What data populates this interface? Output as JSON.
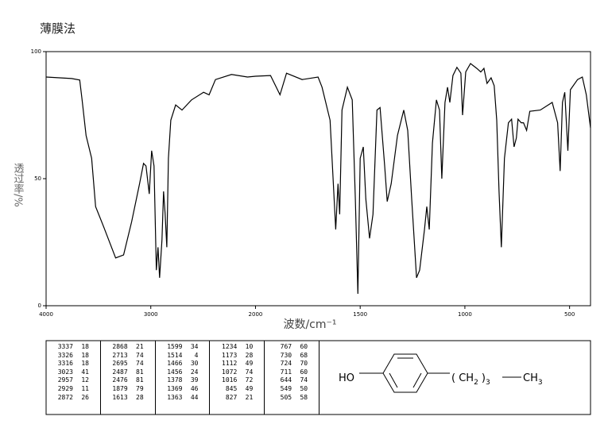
{
  "chart_data": {
    "type": "line",
    "title": "薄膜法",
    "x_label": "波数/cm⁻¹",
    "y_label": "透过率/%",
    "xlim": [
      4000,
      400
    ],
    "ylim": [
      0,
      100
    ],
    "xticks": [
      4000,
      3000,
      2000,
      1500,
      1000,
      500
    ],
    "yticks": [
      0,
      50,
      100
    ],
    "series": [
      {
        "color": "#000000",
        "x": [
          4000,
          3756,
          3679,
          3656,
          3618,
          3565,
          3527,
          3450,
          3336,
          3260,
          3183,
          3107,
          3069,
          3046,
          3015,
          2992,
          2969,
          2947,
          2931,
          2916,
          2893,
          2878,
          2863,
          2847,
          2832,
          2809,
          2763,
          2702,
          2611,
          2496,
          2443,
          2382,
          2229,
          2076,
          2000,
          1928,
          1883,
          1852,
          1777,
          1701,
          1682,
          1644,
          1617,
          1606,
          1598,
          1587,
          1561,
          1538,
          1523,
          1511,
          1500,
          1485,
          1473,
          1455,
          1439,
          1420,
          1405,
          1383,
          1371,
          1352,
          1322,
          1292,
          1273,
          1254,
          1231,
          1216,
          1193,
          1182,
          1170,
          1155,
          1136,
          1121,
          1110,
          1095,
          1083,
          1072,
          1057,
          1038,
          1019,
          1011,
          996,
          973,
          943,
          924,
          909,
          894,
          875,
          860,
          848,
          837,
          826,
          811,
          792,
          777,
          765,
          754,
          746,
          731,
          720,
          705,
          690,
          640,
          583,
          557,
          545,
          534,
          523,
          508,
          496,
          462,
          439,
          420,
          400
        ],
        "values": [
          90,
          89.4,
          88.8,
          81,
          67,
          58,
          39,
          31,
          18.8,
          20,
          33,
          48,
          56,
          55,
          44,
          61,
          55,
          14,
          23,
          11,
          26,
          45,
          36,
          23,
          58,
          73,
          79,
          77,
          81,
          84,
          83,
          89,
          91,
          90,
          90.3,
          90.6,
          83,
          91.5,
          89,
          90,
          86,
          73,
          30,
          48,
          36,
          77,
          86,
          81,
          42,
          4.7,
          58,
          62.5,
          42,
          26.5,
          36,
          77,
          78,
          55,
          41,
          48,
          67,
          77,
          69,
          42,
          11,
          14,
          30,
          39,
          30,
          64,
          81,
          77,
          50,
          80,
          86,
          80,
          90.6,
          93.8,
          91.5,
          75,
          92,
          95.3,
          93.4,
          92,
          93.4,
          87.5,
          89.7,
          86.6,
          73,
          45,
          23,
          58,
          72,
          73.4,
          62.5,
          66,
          73.4,
          72,
          72,
          69,
          76.5,
          77,
          80,
          72,
          53,
          80,
          84,
          61,
          85,
          89,
          90,
          83,
          70
        ]
      }
    ]
  },
  "peak_table": [
    [
      [
        3337,
        18
      ],
      [
        3326,
        18
      ],
      [
        3316,
        18
      ],
      [
        3023,
        41
      ],
      [
        2957,
        12
      ],
      [
        2929,
        11
      ],
      [
        2872,
        26
      ]
    ],
    [
      [
        2868,
        21
      ],
      [
        2713,
        74
      ],
      [
        2695,
        74
      ],
      [
        2487,
        81
      ],
      [
        2476,
        81
      ],
      [
        1879,
        79
      ],
      [
        1613,
        28
      ]
    ],
    [
      [
        1599,
        34
      ],
      [
        1514,
        4
      ],
      [
        1466,
        30
      ],
      [
        1456,
        24
      ],
      [
        1378,
        39
      ],
      [
        1369,
        46
      ],
      [
        1363,
        44
      ]
    ],
    [
      [
        1234,
        10
      ],
      [
        1173,
        28
      ],
      [
        1112,
        49
      ],
      [
        1072,
        74
      ],
      [
        1016,
        72
      ],
      [
        845,
        49
      ],
      [
        827,
        21
      ]
    ],
    [
      [
        767,
        60
      ],
      [
        730,
        68
      ],
      [
        724,
        70
      ],
      [
        711,
        60
      ],
      [
        644,
        74
      ],
      [
        549,
        50
      ],
      [
        505,
        58
      ]
    ]
  ],
  "structure": {
    "left": "HO",
    "group": "( CH",
    "sub1": "2",
    "close": " )",
    "sub2": "3",
    "end": "CH",
    "end_sub": "3"
  }
}
